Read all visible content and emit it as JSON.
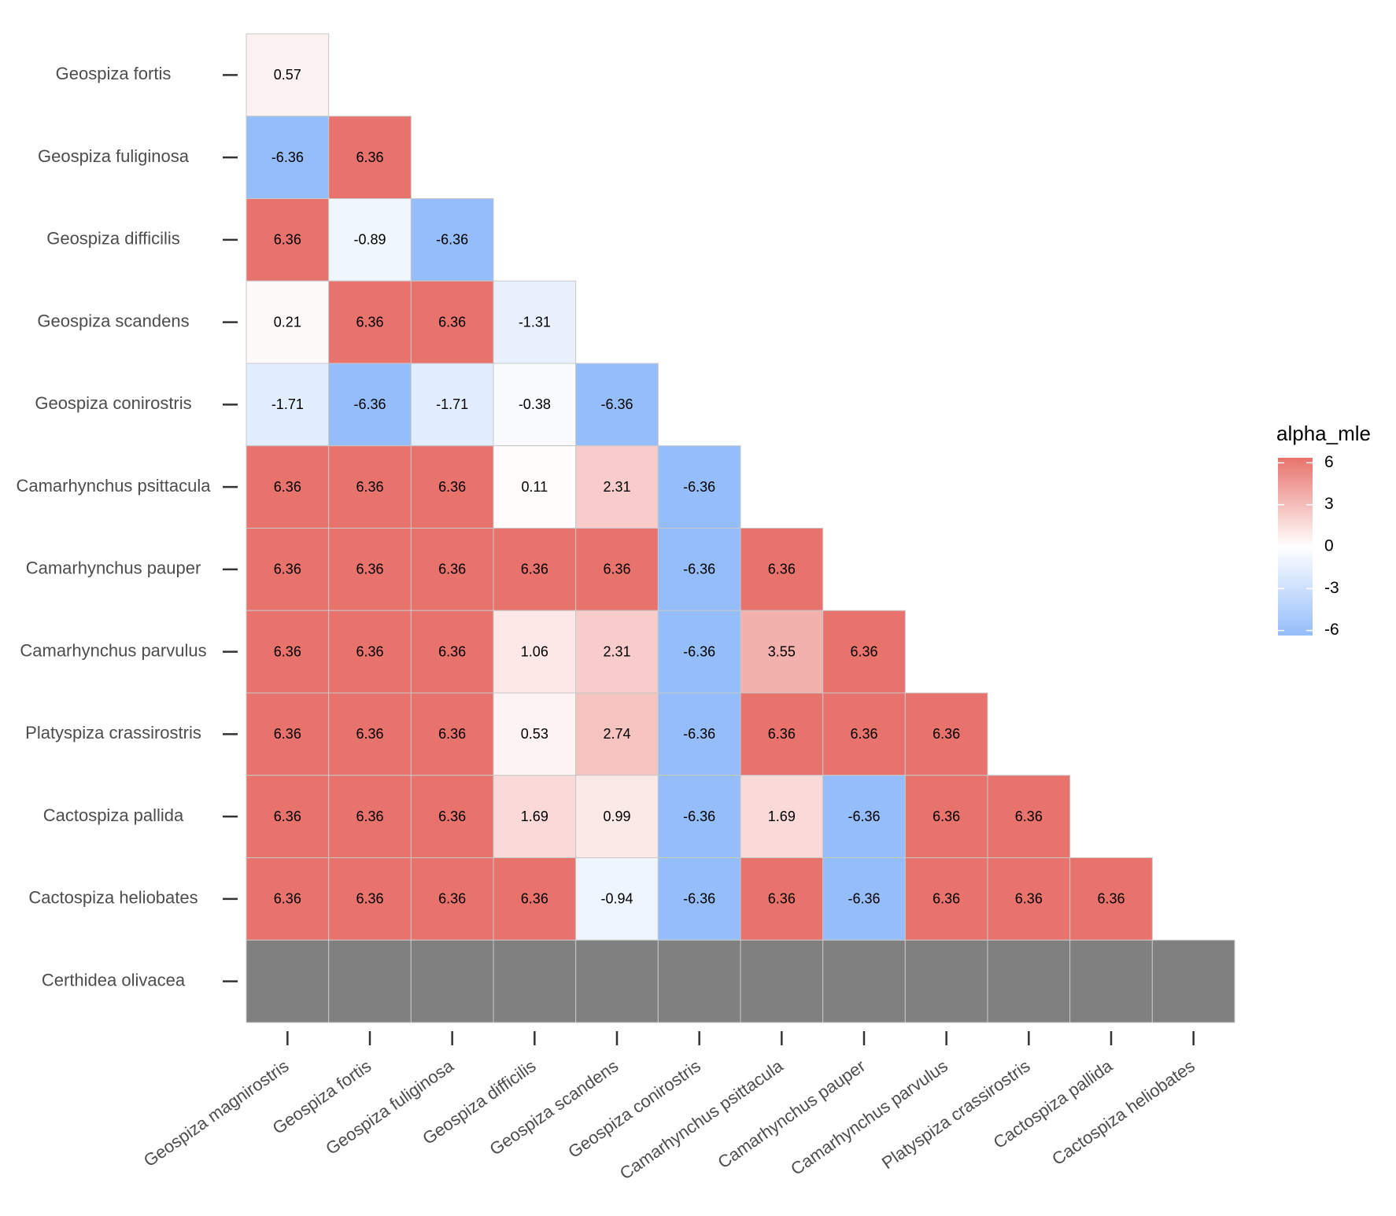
{
  "chart_data": {
    "type": "heatmap",
    "legend_title": "alpha_mle",
    "x_categories": [
      "Geospiza magnirostris",
      "Geospiza fortis",
      "Geospiza fuliginosa",
      "Geospiza difficilis",
      "Geospiza scandens",
      "Geospiza conirostris",
      "Camarhynchus psittacula",
      "Camarhynchus pauper",
      "Camarhynchus parvulus",
      "Platyspiza crassirostris",
      "Cactospiza pallida",
      "Cactospiza heliobates"
    ],
    "y_categories": [
      "Geospiza fortis",
      "Geospiza fuliginosa",
      "Geospiza difficilis",
      "Geospiza scandens",
      "Geospiza conirostris",
      "Camarhynchus psittacula",
      "Camarhynchus pauper",
      "Camarhynchus parvulus",
      "Platyspiza crassirostris",
      "Cactospiza pallida",
      "Cactospiza heliobates",
      "Certhidea olivacea"
    ],
    "values": [
      [
        0.57
      ],
      [
        -6.36,
        6.36
      ],
      [
        6.36,
        -0.89,
        -6.36
      ],
      [
        0.21,
        6.36,
        6.36,
        -1.31
      ],
      [
        -1.71,
        -6.36,
        -1.71,
        -0.38,
        -6.36
      ],
      [
        6.36,
        6.36,
        6.36,
        0.11,
        2.31,
        -6.36
      ],
      [
        6.36,
        6.36,
        6.36,
        6.36,
        6.36,
        -6.36,
        6.36
      ],
      [
        6.36,
        6.36,
        6.36,
        1.06,
        2.31,
        -6.36,
        3.55,
        6.36
      ],
      [
        6.36,
        6.36,
        6.36,
        0.53,
        2.74,
        -6.36,
        6.36,
        6.36,
        6.36
      ],
      [
        6.36,
        6.36,
        6.36,
        1.69,
        0.99,
        -6.36,
        1.69,
        -6.36,
        6.36,
        6.36
      ],
      [
        6.36,
        6.36,
        6.36,
        6.36,
        -0.94,
        -6.36,
        6.36,
        -6.36,
        6.36,
        6.36,
        6.36
      ],
      [
        null,
        null,
        null,
        null,
        null,
        null,
        null,
        null,
        null,
        null,
        null,
        null
      ]
    ],
    "zlim": [
      -6.36,
      6.36
    ],
    "zticks": [
      -6,
      -3,
      0,
      3,
      6
    ],
    "colorscale": {
      "low": "#94bdfa",
      "mid": "#ffffff",
      "high": "#e8736c"
    },
    "na_color": "#808080"
  }
}
